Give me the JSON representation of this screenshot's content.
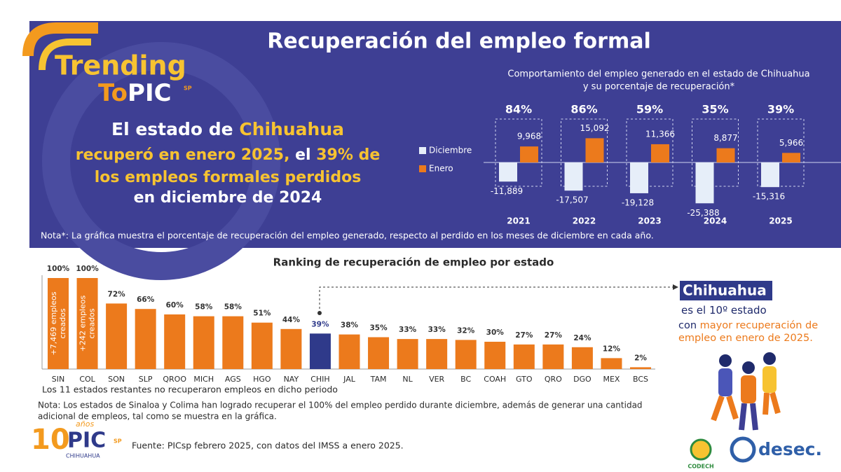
{
  "logo": {
    "line1": "Trending",
    "line2a": "To",
    "line2b": "PIC",
    "sup": "SP"
  },
  "title": "Recuperación del empleo formal",
  "headline": [
    [
      {
        "text": "El estado de ",
        "color": "#ffffff"
      },
      {
        "text": "Chihuahua",
        "color": "#f7c331"
      }
    ],
    [
      {
        "text": "recuperó en enero 2025, ",
        "color": "#f7c331"
      },
      {
        "text": "el ",
        "color": "#ffffff"
      },
      {
        "text": "39% de",
        "color": "#f7c331"
      }
    ],
    [
      {
        "text": "los empleos formales perdidos",
        "color": "#f7c331"
      }
    ],
    [
      {
        "text": "en diciembre de 2024",
        "color": "#ffffff"
      }
    ]
  ],
  "note_top": "Nota*: La gráfica muestra el porcentaje de recuperación del empleo generado, respecto al perdido en los meses de diciembre en cada año.",
  "chart_data": [
    {
      "type": "bar",
      "subtitle": [
        "Comportamiento del empleo generado en el estado de Chihuahua",
        "y su porcentaje de recuperación*"
      ],
      "categories": [
        "2021",
        "2022",
        "2023",
        "2024",
        "2025"
      ],
      "series": [
        {
          "name": "Diciembre",
          "color": "#e6eef9",
          "values": [
            -11889,
            -17507,
            -19128,
            -25388,
            -15316
          ],
          "value_labels": [
            "-11,889",
            "-17,507",
            "-19,128",
            "-25,388",
            "-15,316"
          ]
        },
        {
          "name": "Enero",
          "color": "#ec7a1c",
          "values": [
            9968,
            15092,
            11366,
            8877,
            5966
          ],
          "value_labels": [
            "9,968",
            "15,092",
            "11,366",
            "8,877",
            "5,966"
          ]
        }
      ],
      "recovery": {
        "values": [
          84,
          86,
          59,
          35,
          39
        ],
        "value_labels": [
          "84%",
          "86%",
          "59%",
          "35%",
          "39%"
        ]
      },
      "ylim": [
        -27000,
        17000
      ]
    },
    {
      "type": "bar",
      "title": "Ranking de recuperación de empleo por estado",
      "categories": [
        "SIN",
        "COL",
        "SON",
        "SLP",
        "QROO",
        "MICH",
        "AGS",
        "HGO",
        "NAY",
        "CHIH",
        "JAL",
        "TAM",
        "NL",
        "VER",
        "BC",
        "COAH",
        "GTO",
        "QRO",
        "DGO",
        "MEX",
        "BCS"
      ],
      "values": [
        100,
        100,
        72,
        66,
        60,
        58,
        58,
        51,
        44,
        39,
        38,
        35,
        33,
        33,
        32,
        30,
        27,
        27,
        24,
        12,
        2
      ],
      "value_labels": [
        "100%",
        "100%",
        "72%",
        "66%",
        "60%",
        "58%",
        "58%",
        "51%",
        "44%",
        "39%",
        "38%",
        "35%",
        "33%",
        "33%",
        "32%",
        "30%",
        "27%",
        "27%",
        "24%",
        "12%",
        "2%"
      ],
      "colors": [
        "#ec7a1c",
        "#ec7a1c",
        "#ec7a1c",
        "#ec7a1c",
        "#ec7a1c",
        "#ec7a1c",
        "#ec7a1c",
        "#ec7a1c",
        "#ec7a1c",
        "#2f3a8a",
        "#ec7a1c",
        "#ec7a1c",
        "#ec7a1c",
        "#ec7a1c",
        "#ec7a1c",
        "#ec7a1c",
        "#ec7a1c",
        "#ec7a1c",
        "#ec7a1c",
        "#ec7a1c",
        "#ec7a1c"
      ],
      "annotations": [
        [
          "+7,469 empleos",
          "creados"
        ],
        [
          "+242 empleos",
          "creados"
        ]
      ],
      "ylim": [
        0,
        100
      ]
    }
  ],
  "remaining_note": "Los 11 estados restantes no recuperaron empleos en dicho periodo",
  "bottom_note": [
    "Nota: Los estados de Sinaloa y Colima han logrado recuperar el 100% del empleo perdido durante diciembre, además de generar una cantidad",
    "adicional de empleos, tal como se muestra en la gráfica."
  ],
  "source": "Fuente:  PICsp febrero 2025, con datos del IMSS a enero 2025.",
  "callout": {
    "name": "Chihuahua",
    "lines": [
      [
        {
          "text": "es el ",
          "color": "#1f2a6b"
        },
        {
          "text": "10º",
          "color": "#1f2a6b"
        },
        {
          "text": " estado",
          "color": "#1f2a6b"
        }
      ],
      [
        {
          "text": "con ",
          "color": "#1f2a6b"
        },
        {
          "text": "mayor recuperación de",
          "color": "#ec7a1c"
        }
      ],
      [
        {
          "text": "empleo en enero de 2025.",
          "color": "#ec7a1c"
        }
      ]
    ]
  },
  "footer_logo": {
    "number": "10",
    "years": "años",
    "name": "PIC",
    "sup": "SP",
    "place": "CHIHUAHUA"
  },
  "partners": [
    "CODECH",
    "desec."
  ]
}
